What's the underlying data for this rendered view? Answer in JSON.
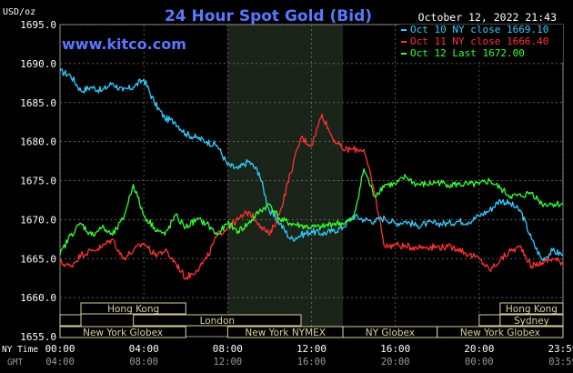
{
  "chart_data": {
    "type": "line",
    "title": "24 Hour Spot Gold (Bid)",
    "ylabel": "USD/oz",
    "timestamp": "October 12, 2022 21:43",
    "watermark": "www.kitco.com",
    "ylim": [
      1655,
      1695
    ],
    "xlim": [
      0,
      24
    ],
    "y_ticks": [
      "1695.0",
      "1690.0",
      "1685.0",
      "1680.0",
      "1675.0",
      "1670.0",
      "1665.0",
      "1660.0",
      "1655.0"
    ],
    "y_tick_values": [
      1695,
      1690,
      1685,
      1680,
      1675,
      1670,
      1665,
      1660,
      1655
    ],
    "x_axis_label": "NY Time",
    "x_ticks": [
      {
        "t": 0,
        "label": "00:00",
        "gmt": "04:00"
      },
      {
        "t": 4,
        "label": "04:00",
        "gmt": "08:00"
      },
      {
        "t": 8,
        "label": "08:00",
        "gmt": "12:00"
      },
      {
        "t": 12,
        "label": "12:00",
        "gmt": "16:00"
      },
      {
        "t": 16,
        "label": "16:00",
        "gmt": "20:00"
      },
      {
        "t": 20,
        "label": "20:00",
        "gmt": "00:00"
      },
      {
        "t": 24,
        "label": "23:59",
        "gmt": "03:59"
      }
    ],
    "gmt_label": "GMT",
    "highlight_range": [
      8.0,
      13.5
    ],
    "legend_position": "top-right",
    "series": [
      {
        "name": "Oct 10 NY close 1669.10",
        "color": "#33ccff",
        "x": [
          0,
          0.5,
          1,
          1.5,
          2,
          2.5,
          3,
          3.5,
          4,
          4.5,
          5,
          5.5,
          6,
          6.5,
          7,
          7.5,
          8,
          8.5,
          9,
          9.5,
          10,
          10.5,
          11,
          11.5,
          12,
          12.5,
          13,
          13.5,
          14,
          14.5,
          15,
          15.5,
          16,
          16.5,
          17,
          17.5,
          18,
          18.5,
          19,
          19.5,
          20,
          20.5,
          21,
          21.5,
          22,
          22.5,
          23,
          23.5,
          24
        ],
        "y": [
          1689,
          1688.5,
          1686.5,
          1687,
          1686.5,
          1687.5,
          1686.5,
          1687,
          1688,
          1685,
          1683,
          1682.5,
          1681,
          1680.5,
          1680,
          1679.5,
          1677,
          1676.5,
          1677.5,
          1676,
          1671,
          1669.5,
          1667.5,
          1668,
          1668.5,
          1668.2,
          1668.5,
          1669,
          1670.5,
          1670,
          1669.8,
          1670.2,
          1669.5,
          1669.8,
          1669.2,
          1669.5,
          1669.5,
          1669.5,
          1669.8,
          1669.7,
          1670.5,
          1671.2,
          1672.5,
          1672,
          1671,
          1667.5,
          1664.8,
          1666,
          1665.5
        ]
      },
      {
        "name": "Oct 11 NY close 1666.40",
        "color": "#ff3333",
        "x": [
          0,
          0.5,
          1,
          1.5,
          2,
          2.5,
          3,
          3.5,
          4,
          4.5,
          5,
          5.5,
          6,
          6.5,
          7,
          7.5,
          8,
          8.5,
          9,
          9.5,
          10,
          10.5,
          11,
          11.5,
          12,
          12.5,
          13,
          13.5,
          14,
          14.5,
          15,
          15.5,
          16,
          16.5,
          17,
          17.5,
          18,
          18.5,
          19,
          19.5,
          20,
          20.5,
          21,
          21.5,
          22,
          22.5,
          23,
          23.5,
          24
        ],
        "y": [
          1664.5,
          1664,
          1665.5,
          1666,
          1666.5,
          1667.5,
          1665,
          1666,
          1667,
          1665.5,
          1666,
          1664.5,
          1662.5,
          1663.5,
          1665,
          1668,
          1669,
          1670,
          1671,
          1669.5,
          1668,
          1671,
          1676,
          1680.5,
          1679.5,
          1683.5,
          1680.5,
          1679,
          1679,
          1679,
          1673.5,
          1666.5,
          1666.8,
          1666.5,
          1666.5,
          1666.5,
          1666.5,
          1666.5,
          1666.3,
          1665.5,
          1665,
          1663.5,
          1664.8,
          1666,
          1666.5,
          1664,
          1664.5,
          1665,
          1664.5
        ]
      },
      {
        "name": "Oct 12 Last 1672.00",
        "color": "#33ff33",
        "x": [
          0,
          0.5,
          1,
          1.5,
          2,
          2.5,
          3,
          3.5,
          4,
          4.5,
          5,
          5.5,
          6,
          6.5,
          7,
          7.5,
          8,
          8.5,
          9,
          9.5,
          10,
          10.5,
          11,
          11.5,
          12,
          12.5,
          13,
          13.5,
          14,
          14.5,
          15,
          15.5,
          16,
          16.5,
          17,
          17.5,
          18,
          18.5,
          19,
          19.5,
          20,
          20.5,
          21,
          21.5,
          22,
          22.5,
          23,
          23.5,
          24
        ],
        "y": [
          1665.5,
          1668,
          1669.5,
          1668,
          1669,
          1668,
          1670,
          1674.5,
          1670.5,
          1669,
          1668,
          1670.5,
          1669,
          1670,
          1669.5,
          1668,
          1669.5,
          1668.5,
          1669.5,
          1671,
          1672,
          1670,
          1669.5,
          1669.2,
          1669,
          1669,
          1669.5,
          1669.5,
          1670,
          1676.5,
          1673,
          1674.5,
          1674.5,
          1675.5,
          1674.5,
          1674.5,
          1674.8,
          1674.5,
          1674.5,
          1674.5,
          1674.5,
          1675,
          1674,
          1673,
          1673,
          1673.5,
          1672,
          1672,
          1672
        ]
      }
    ],
    "sessions": [
      {
        "row": 0,
        "start": 1.0,
        "end": 6.0,
        "label": "Hong Kong"
      },
      {
        "row": 1,
        "start": 0.0,
        "end": 1.0,
        "label": ""
      },
      {
        "row": 1,
        "start": 3.5,
        "end": 11.5,
        "label": "London"
      },
      {
        "row": 2,
        "start": 0.0,
        "end": 6.0,
        "label": "New York Globex"
      },
      {
        "row": 3,
        "start": 8.0,
        "end": 13.5,
        "label": "New York NYMEX"
      },
      {
        "row": 3,
        "start": 13.5,
        "end": 18.0,
        "label": "NY Globex"
      },
      {
        "row": 0,
        "start": 21.0,
        "end": 24.0,
        "label": "Hong Kong"
      },
      {
        "row": 1,
        "start": 20.0,
        "end": 21.0,
        "label": ""
      },
      {
        "row": 1,
        "start": 21.0,
        "end": 24.0,
        "label": "Sydney"
      },
      {
        "row": 2,
        "start": 18.0,
        "end": 24.0,
        "label": "New York Globex"
      }
    ]
  }
}
